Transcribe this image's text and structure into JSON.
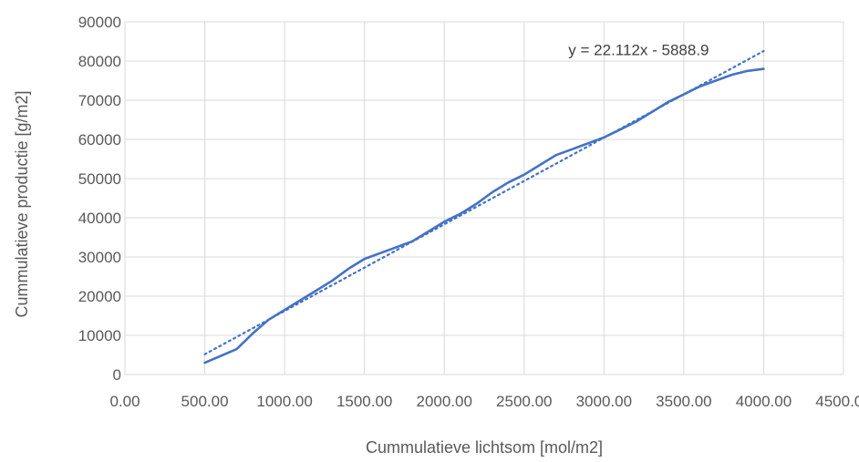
{
  "chart_data": {
    "type": "line",
    "xlabel": "Cummulatieve lichtsom [mol/m2]",
    "ylabel": "Cummulatieve productie [g/m2]",
    "xlim": [
      0,
      4500
    ],
    "ylim": [
      0,
      90000
    ],
    "x_ticks": [
      "0.00",
      "500.00",
      "1000.00",
      "1500.00",
      "2000.00",
      "2500.00",
      "3000.00",
      "3500.00",
      "4000.00",
      "4500.00"
    ],
    "y_ticks": [
      "0",
      "10000",
      "20000",
      "30000",
      "40000",
      "50000",
      "60000",
      "70000",
      "80000",
      "90000"
    ],
    "grid": true,
    "legend": "none",
    "series": [
      {
        "style": "solid",
        "color": "#4472c4",
        "x": [
          500,
          700,
          800,
          900,
          1000,
          1100,
          1200,
          1300,
          1400,
          1500,
          1600,
          1700,
          1800,
          1900,
          2000,
          2100,
          2200,
          2300,
          2400,
          2500,
          2600,
          2700,
          2800,
          2900,
          3000,
          3100,
          3200,
          3300,
          3400,
          3500,
          3600,
          3700,
          3800,
          3900,
          4000
        ],
        "y": [
          3000,
          6500,
          10500,
          14000,
          16500,
          19000,
          21500,
          24000,
          27000,
          29500,
          31000,
          32500,
          34000,
          36500,
          39000,
          41000,
          43500,
          46500,
          49000,
          51000,
          53500,
          56000,
          57500,
          59000,
          60500,
          62500,
          64500,
          67000,
          69500,
          71500,
          73500,
          75000,
          76500,
          77500,
          78000
        ]
      },
      {
        "style": "dotted",
        "color": "#4472c4",
        "trendline": {
          "slope": 22.112,
          "intercept": -5888.9,
          "x_range": [
            500,
            4000
          ]
        }
      }
    ],
    "annotations": [
      {
        "text": "y = 22.112x - 5888.9",
        "x": 2800,
        "y": 81500
      }
    ]
  }
}
